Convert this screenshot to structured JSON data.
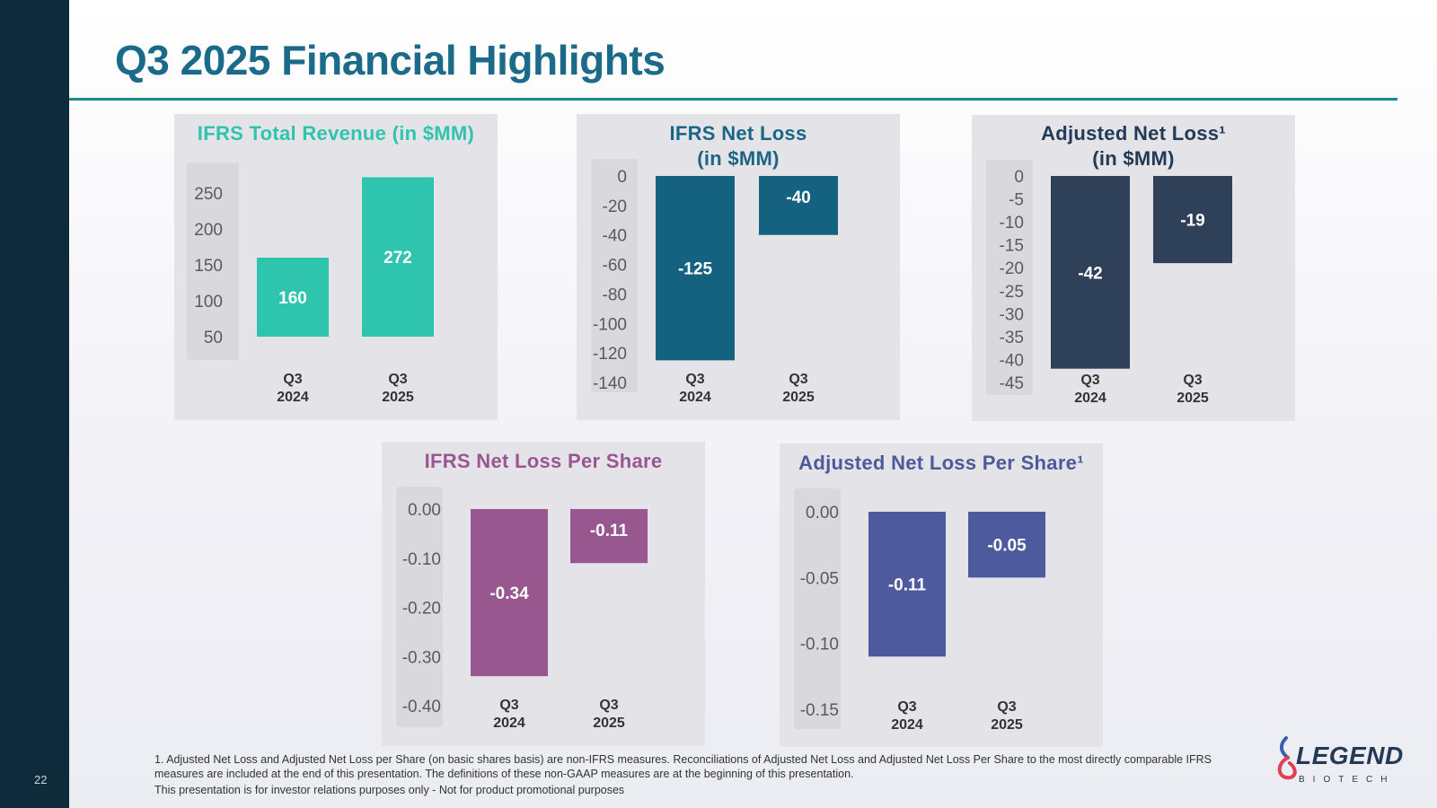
{
  "slide": {
    "title": "Q3 2025 Financial Highlights",
    "page_number": "22",
    "footnote": "1. Adjusted Net Loss and Adjusted Net Loss per Share (on basic shares basis) are non-IFRS measures. Reconciliations of Adjusted Net Loss and Adjusted Net Loss Per Share to the most directly comparable IFRS measures are included at the end of this presentation. The definitions of these non-GAAP measures are at the beginning of this presentation.",
    "disclaimer": "This presentation is for investor relations purposes only - Not for product promotional purposes"
  },
  "logo": {
    "word": "LEGEND",
    "sub": "BIOTECH",
    "icon": "legend-biotech-mark-icon"
  },
  "chart_data": [
    {
      "type": "bar",
      "title_lines": [
        "IFRS Total Revenue (in $MM)"
      ],
      "title_color": "#2ec4ae",
      "categories": [
        [
          "Q3",
          "2024"
        ],
        [
          "Q3",
          "2025"
        ]
      ],
      "values": [
        160,
        272
      ],
      "value_labels": [
        "160",
        "272"
      ],
      "bar_color": "#2ec4ae",
      "ylim": [
        50,
        250
      ],
      "ticks": [
        250,
        200,
        150,
        100,
        50
      ],
      "tick_labels": [
        "250",
        "200",
        "150",
        "100",
        "50"
      ]
    },
    {
      "type": "bar",
      "title_lines": [
        "IFRS Net Loss",
        "(in $MM)"
      ],
      "title_color": "#1b6585",
      "categories": [
        [
          "Q3",
          "2024"
        ],
        [
          "Q3",
          "2025"
        ]
      ],
      "values": [
        -125,
        -40
      ],
      "value_labels": [
        "-125",
        "-40"
      ],
      "bar_color": "#14627f",
      "ylim": [
        -140,
        0
      ],
      "ticks": [
        0,
        -20,
        -40,
        -60,
        -80,
        -100,
        -120,
        -140
      ],
      "tick_labels": [
        "0",
        "-20",
        "-40",
        "-60",
        "-80",
        "-100",
        "-120",
        "-140"
      ]
    },
    {
      "type": "bar",
      "title_lines": [
        "Adjusted Net Loss¹",
        "(in $MM)"
      ],
      "title_color": "#233a56",
      "categories": [
        [
          "Q3",
          "2024"
        ],
        [
          "Q3",
          "2025"
        ]
      ],
      "values": [
        -42,
        -19
      ],
      "value_labels": [
        "-42",
        "-19"
      ],
      "bar_color": "#2e4159",
      "ylim": [
        -45,
        0
      ],
      "ticks": [
        0,
        -5,
        -10,
        -15,
        -20,
        -25,
        -30,
        -35,
        -40,
        -45
      ],
      "tick_labels": [
        "0",
        "-5",
        "-10",
        "-15",
        "-20",
        "-25",
        "-30",
        "-35",
        "-40",
        "-45"
      ]
    },
    {
      "type": "bar",
      "title_lines": [
        "IFRS Net Loss Per Share"
      ],
      "title_color": "#9b5590",
      "categories": [
        [
          "Q3",
          "2024"
        ],
        [
          "Q3",
          "2025"
        ]
      ],
      "values": [
        -0.34,
        -0.11
      ],
      "value_labels": [
        "-0.34",
        "-0.11"
      ],
      "bar_color": "#98588f",
      "ylim": [
        -0.4,
        0
      ],
      "ticks": [
        0,
        -0.1,
        -0.2,
        -0.3,
        -0.4
      ],
      "tick_labels": [
        "0.00",
        "-0.10",
        "-0.20",
        "-0.30",
        "-0.40"
      ]
    },
    {
      "type": "bar",
      "title_lines": [
        "Adjusted Net Loss Per Share¹"
      ],
      "title_color": "#4c5a9c",
      "categories": [
        [
          "Q3",
          "2024"
        ],
        [
          "Q3",
          "2025"
        ]
      ],
      "values": [
        -0.11,
        -0.05
      ],
      "value_labels": [
        "-0.11",
        "-0.05"
      ],
      "bar_color": "#4e5a9e",
      "ylim": [
        -0.15,
        0
      ],
      "ticks": [
        0,
        -0.05,
        -0.1,
        -0.15
      ],
      "tick_labels": [
        "0.00",
        "-0.05",
        "-0.10",
        "-0.15"
      ]
    }
  ]
}
